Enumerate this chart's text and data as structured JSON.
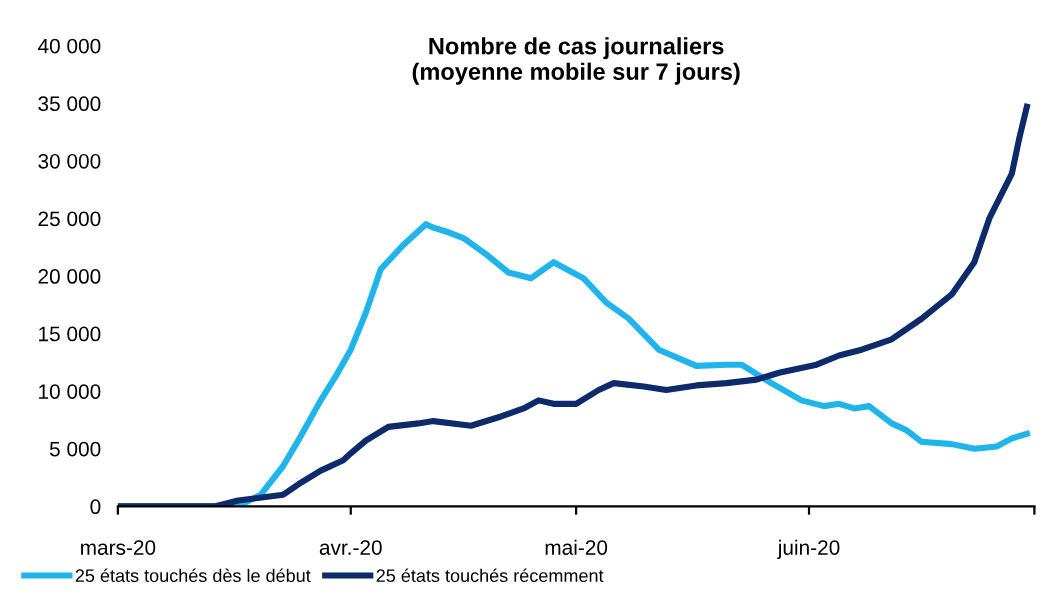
{
  "chart_data": {
    "type": "line",
    "title": "Nombre de cas journaliers\n(moyenne mobile sur 7 jours)",
    "xlim": [
      "2020-03-01",
      "2020-07-01"
    ],
    "xticks": [
      {
        "value": "2020-03-01",
        "label": "mars-20"
      },
      {
        "value": "2020-04-01",
        "label": "avr.-20"
      },
      {
        "value": "2020-05-01",
        "label": "mai-20"
      },
      {
        "value": "2020-06-01",
        "label": "juin-20"
      },
      {
        "value": "2020-07-01",
        "label": null
      }
    ],
    "ylim": [
      0,
      40000
    ],
    "yticks": [
      0,
      {
        "value": 5000,
        "label": "5 000"
      },
      {
        "value": 10000,
        "label": "10 000"
      },
      {
        "value": 15000,
        "label": "15 000"
      },
      {
        "value": 20000,
        "label": "20 000"
      },
      {
        "value": 25000,
        "label": "25 000"
      },
      {
        "value": 30000,
        "label": "30 000"
      },
      {
        "value": 35000,
        "label": "35 000"
      },
      {
        "value": 40000,
        "label": "40 000"
      }
    ],
    "grid": false,
    "legend": "bottom",
    "marker": "none",
    "line_style": "solid",
    "series": [
      {
        "name": "25 états touchés dès le début",
        "color": "#1fb4ea",
        "x": [
          "2020-03-01",
          "2020-03-17",
          "2020-03-20",
          "2020-03-23",
          "2020-03-25",
          "2020-03-28",
          "2020-03-30",
          "2020-04-01",
          "2020-04-03",
          "2020-04-05",
          "2020-04-08",
          "2020-04-11",
          "2020-04-12",
          "2020-04-14",
          "2020-04-16",
          "2020-04-19",
          "2020-04-22",
          "2020-04-25",
          "2020-04-28",
          "2020-05-02",
          "2020-05-05",
          "2020-05-08",
          "2020-05-12",
          "2020-05-17",
          "2020-05-21",
          "2020-05-23",
          "2020-05-27",
          "2020-05-31",
          "2020-06-03",
          "2020-06-05",
          "2020-06-07",
          "2020-06-09",
          "2020-06-12",
          "2020-06-14",
          "2020-06-16",
          "2020-06-20",
          "2020-06-23",
          "2020-06-26",
          "2020-06-28",
          "2020-06-30"
        ],
        "values": [
          0,
          0,
          1000,
          3500,
          5700,
          9200,
          11300,
          13600,
          16800,
          20600,
          22700,
          24500,
          24200,
          23800,
          23300,
          21900,
          20300,
          19800,
          21200,
          19800,
          17700,
          16300,
          13600,
          12200,
          12300,
          12300,
          10700,
          9200,
          8700,
          8900,
          8500,
          8700,
          7200,
          6600,
          5600,
          5400,
          5000,
          5200,
          5900,
          6300
        ]
      },
      {
        "name": "25 états touchés récemment",
        "color": "#0d2a6b",
        "x": [
          "2020-03-01",
          "2020-03-14",
          "2020-03-17",
          "2020-03-23",
          "2020-03-25",
          "2020-03-28",
          "2020-03-31",
          "2020-04-01",
          "2020-04-03",
          "2020-04-06",
          "2020-04-10",
          "2020-04-12",
          "2020-04-17",
          "2020-04-21",
          "2020-04-24",
          "2020-04-26",
          "2020-04-28",
          "2020-05-01",
          "2020-05-04",
          "2020-05-06",
          "2020-05-10",
          "2020-05-13",
          "2020-05-17",
          "2020-05-21",
          "2020-05-25",
          "2020-05-28",
          "2020-06-02",
          "2020-06-05",
          "2020-06-08",
          "2020-06-12",
          "2020-06-16",
          "2020-06-20",
          "2020-06-23",
          "2020-06-25",
          "2020-06-28",
          "2020-06-29",
          "2020-06-30"
        ],
        "values": [
          0,
          0,
          500,
          1000,
          1900,
          3100,
          4000,
          4600,
          5700,
          6900,
          7200,
          7400,
          7000,
          7800,
          8500,
          9200,
          8900,
          8900,
          10100,
          10700,
          10400,
          10100,
          10500,
          10700,
          11000,
          11600,
          12300,
          13100,
          13600,
          14500,
          16300,
          18400,
          21200,
          25000,
          28900,
          32000,
          34700
        ]
      }
    ]
  }
}
